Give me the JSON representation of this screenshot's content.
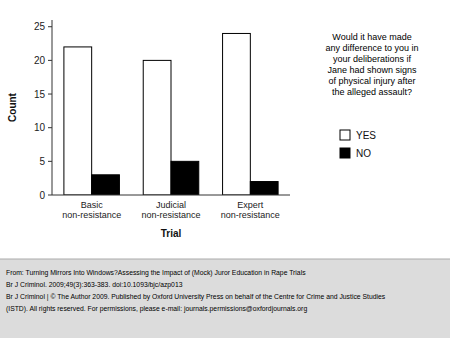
{
  "chart_data": {
    "type": "bar",
    "categories": [
      "Basic\nnon-resistance",
      "Judicial\nnon-resistance",
      "Expert\nnon-resistance"
    ],
    "series": [
      {
        "name": "YES",
        "color": "#ffffff",
        "values": [
          22,
          20,
          24
        ]
      },
      {
        "name": "NO",
        "color": "#000000",
        "values": [
          3,
          5,
          2
        ]
      }
    ],
    "xlabel": "Trial",
    "ylabel": "Count",
    "ylim": [
      0,
      26
    ],
    "yticks": [
      0,
      5,
      10,
      15,
      20,
      25
    ],
    "grid": false,
    "legend": "right",
    "annotation": "Would it have made\nany difference to you in\nyour deliberations if\nJane had shown signs\nof physical injury after\nthe alleged assault?",
    "footer": [
      "From: Turning Mirrors Into Windows?Assessing the Impact of (Mock) Juror Education in Rape Trials",
      "Br J Criminol. 2009;49(3):363-383. doi:10.1093/bjc/azp013",
      "Br J Criminol | © The Author 2009. Published by Oxford University Press on behalf of the Centre for Crime and Justice Studies",
      "(ISTD). All rights reserved. For permissions, please e-mail: journals.permissions@oxfordjournals.org"
    ]
  }
}
